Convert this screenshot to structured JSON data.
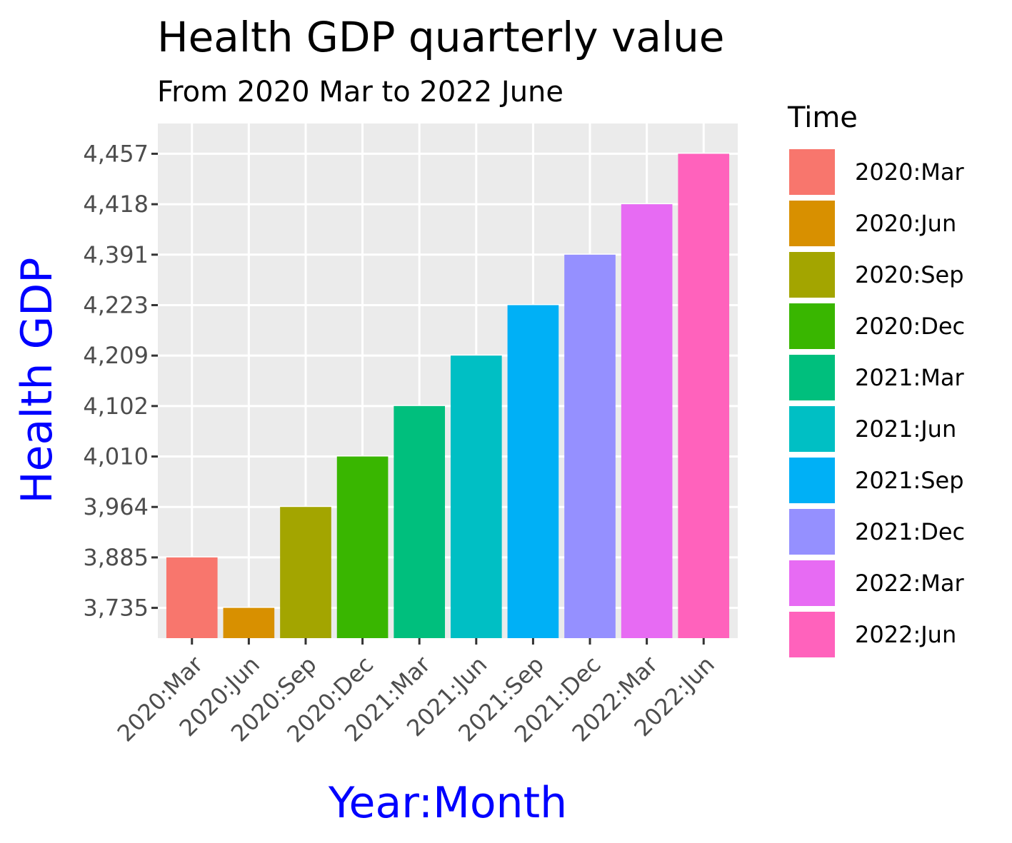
{
  "chart_data": {
    "type": "bar",
    "title": "Health GDP quarterly value",
    "subtitle": "From 2020 Mar to 2022 June",
    "xlabel": "Year:Month",
    "ylabel": "Health GDP",
    "axis_title_color": "#0000ff",
    "categories": [
      "2020:Mar",
      "2020:Jun",
      "2020:Sep",
      "2020:Dec",
      "2021:Mar",
      "2021:Jun",
      "2021:Sep",
      "2021:Dec",
      "2022:Mar",
      "2022:Jun"
    ],
    "values": [
      3885,
      3735,
      3964,
      4010,
      4102,
      4209,
      4223,
      4391,
      4418,
      4457
    ],
    "value_labels": [
      "3,885",
      "3,735",
      "3,964",
      "4,010",
      "4,102",
      "4,209",
      "4,223",
      "4,391",
      "4,418",
      "4,457"
    ],
    "y_axis_scale": "discrete",
    "y_tick_labels": [
      "3,735",
      "3,885",
      "3,964",
      "4,010",
      "4,102",
      "4,209",
      "4,223",
      "4,391",
      "4,418",
      "4,457"
    ],
    "colors": [
      "#F8766D",
      "#D89000",
      "#A3A500",
      "#39B600",
      "#00BF7D",
      "#00BFC4",
      "#00B0F6",
      "#9590FF",
      "#E76BF3",
      "#FF62BC"
    ],
    "legend": {
      "title": "Time",
      "position": "right",
      "entries": [
        "2020:Mar",
        "2020:Jun",
        "2020:Sep",
        "2020:Dec",
        "2021:Mar",
        "2021:Jun",
        "2021:Sep",
        "2021:Dec",
        "2022:Mar",
        "2022:Jun"
      ]
    },
    "grid": true,
    "panel_background": "#EBEBEB"
  }
}
